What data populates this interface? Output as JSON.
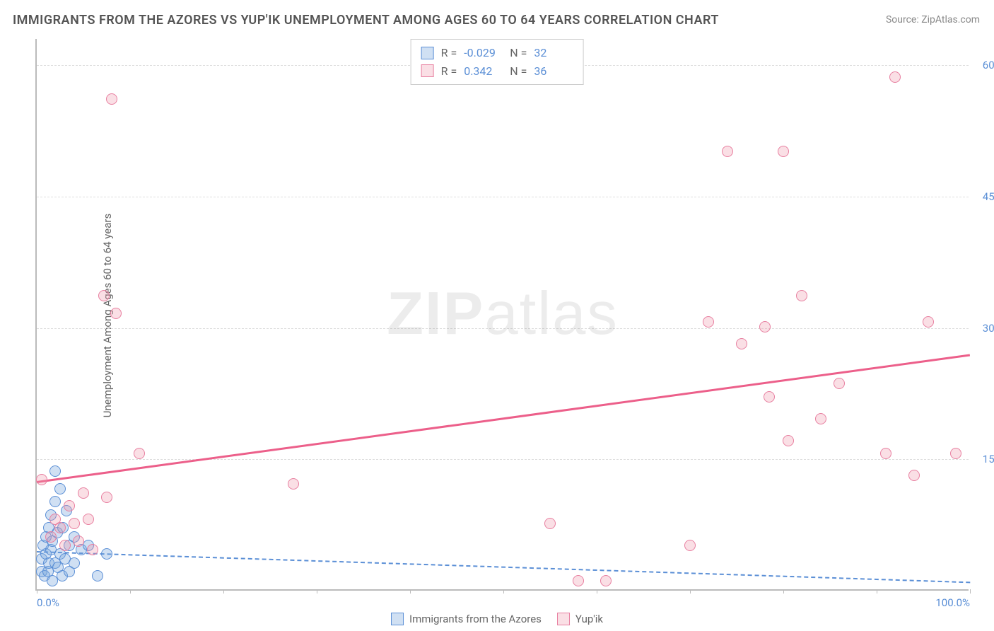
{
  "title": "IMMIGRANTS FROM THE AZORES VS YUP'IK UNEMPLOYMENT AMONG AGES 60 TO 64 YEARS CORRELATION CHART",
  "source": "Source: ZipAtlas.com",
  "watermark_bold": "ZIP",
  "watermark_light": "atlas",
  "ylabel": "Unemployment Among Ages 60 to 64 years",
  "chart": {
    "type": "scatter",
    "xlim": [
      0,
      100
    ],
    "ylim": [
      0,
      63
    ],
    "yticks": [
      15,
      30,
      45,
      60
    ],
    "ytick_labels": [
      "15.0%",
      "30.0%",
      "45.0%",
      "60.0%"
    ],
    "xticks": [
      0,
      10,
      20,
      30,
      40,
      50,
      60,
      70,
      80,
      90,
      100
    ],
    "xtick_labels_shown": {
      "0": "0.0%",
      "100": "100.0%"
    },
    "background_color": "#ffffff",
    "grid_color": "#dddddd",
    "axis_color": "#bbbbbb",
    "tick_label_color": "#5b8fd6",
    "marker_size": 16,
    "series": [
      {
        "name": "Immigrants from the Azores",
        "color_fill": "rgba(120,165,220,0.35)",
        "color_border": "#5b8fd6",
        "class": "blue",
        "R": "-0.029",
        "N": "32",
        "trend": {
          "x1": 0,
          "y1": 4.5,
          "x2": 100,
          "y2": 1.0,
          "style": "dashed",
          "width": 2
        },
        "points": [
          [
            0.5,
            2
          ],
          [
            0.5,
            3.5
          ],
          [
            0.7,
            5
          ],
          [
            0.8,
            1.5
          ],
          [
            1,
            4
          ],
          [
            1,
            6
          ],
          [
            1.2,
            2
          ],
          [
            1.3,
            7
          ],
          [
            1.3,
            3
          ],
          [
            1.5,
            8.5
          ],
          [
            1.5,
            4.5
          ],
          [
            1.7,
            1
          ],
          [
            1.7,
            5.5
          ],
          [
            2,
            3
          ],
          [
            2,
            10
          ],
          [
            2,
            13.5
          ],
          [
            2.2,
            6.5
          ],
          [
            2.3,
            2.5
          ],
          [
            2.5,
            11.5
          ],
          [
            2.5,
            4
          ],
          [
            2.7,
            1.5
          ],
          [
            2.8,
            7
          ],
          [
            3,
            3.5
          ],
          [
            3.2,
            9
          ],
          [
            3.5,
            5
          ],
          [
            3.5,
            2
          ],
          [
            4,
            6
          ],
          [
            4,
            3
          ],
          [
            4.8,
            4.5
          ],
          [
            5.5,
            5
          ],
          [
            6.5,
            1.5
          ],
          [
            7.5,
            4
          ]
        ]
      },
      {
        "name": "Yup'ik",
        "color_fill": "rgba(240,150,170,0.3)",
        "color_border": "#e87fa0",
        "class": "pink",
        "R": "0.342",
        "N": "36",
        "trend": {
          "x1": 0,
          "y1": 12.5,
          "x2": 100,
          "y2": 27.0,
          "style": "solid",
          "width": 3
        },
        "points": [
          [
            0.5,
            12.5
          ],
          [
            1.5,
            6
          ],
          [
            2,
            8
          ],
          [
            2.5,
            7
          ],
          [
            3,
            5
          ],
          [
            3.5,
            9.5
          ],
          [
            4,
            7.5
          ],
          [
            4.5,
            5.5
          ],
          [
            5,
            11
          ],
          [
            5.5,
            8
          ],
          [
            6,
            4.5
          ],
          [
            7.2,
            33.5
          ],
          [
            7.5,
            10.5
          ],
          [
            8,
            56
          ],
          [
            8.5,
            31.5
          ],
          [
            11,
            15.5
          ],
          [
            27.5,
            12
          ],
          [
            55,
            7.5
          ],
          [
            58,
            1
          ],
          [
            61,
            1
          ],
          [
            70,
            5
          ],
          [
            72,
            30.5
          ],
          [
            74,
            50
          ],
          [
            75.5,
            28
          ],
          [
            78,
            30
          ],
          [
            78.5,
            22
          ],
          [
            80,
            50
          ],
          [
            80.5,
            17
          ],
          [
            82,
            33.5
          ],
          [
            84,
            19.5
          ],
          [
            86,
            23.5
          ],
          [
            91,
            15.5
          ],
          [
            92,
            58.5
          ],
          [
            94,
            13
          ],
          [
            95.5,
            30.5
          ],
          [
            98.5,
            15.5
          ]
        ]
      }
    ]
  },
  "legend_top": {
    "R_label": "R =",
    "N_label": "N ="
  },
  "legend_bottom": [
    {
      "class": "blue",
      "label": "Immigrants from the Azores"
    },
    {
      "class": "pink",
      "label": "Yup'ik"
    }
  ]
}
